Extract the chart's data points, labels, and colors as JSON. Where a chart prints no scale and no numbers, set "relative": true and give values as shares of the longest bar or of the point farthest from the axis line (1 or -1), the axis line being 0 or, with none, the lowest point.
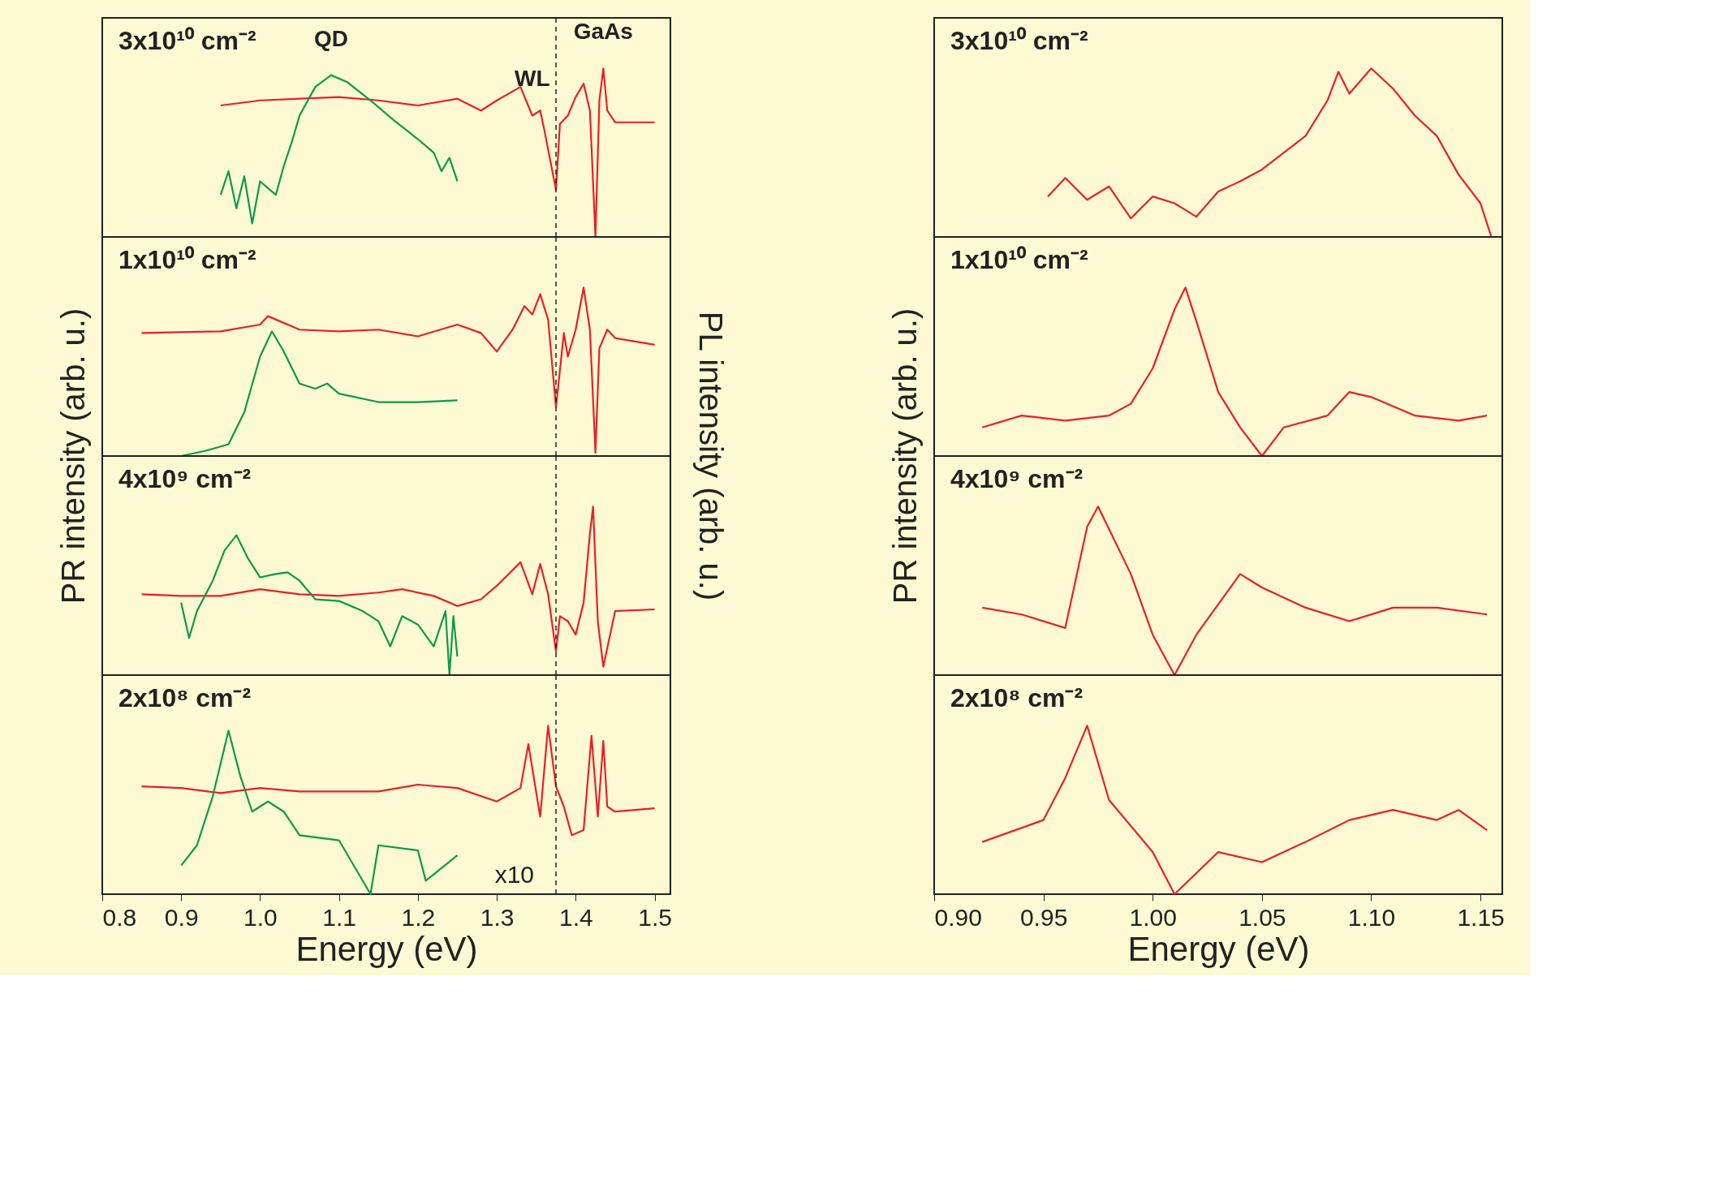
{
  "chart_data": [
    {
      "type": "line",
      "relative": true,
      "xlim": [
        0.8,
        1.52
      ],
      "xticks": [
        0.8,
        0.9,
        1.0,
        1.1,
        1.2,
        1.3,
        1.4,
        1.5
      ],
      "tick_labels": false,
      "annotations": [
        "3x10¹⁰ cm⁻²",
        {
          "text": "QD",
          "x": 1.09,
          "y": 0.96
        },
        {
          "text": "WL",
          "x": 1.345,
          "y": 0.72
        },
        {
          "text": "GaAs",
          "x": 1.435,
          "y": 1
        }
      ],
      "ref_lines": [
        {
          "axis": "x",
          "value": 1.375,
          "line_style": "dashed",
          "color": "#222222"
        }
      ],
      "series": [
        {
          "color": "#e8202a",
          "x": [
            0.95,
            1.0,
            1.05,
            1.1,
            1.15,
            1.2,
            1.25,
            1.28,
            1.3,
            1.33,
            1.345,
            1.355,
            1.36,
            1.375,
            1.38,
            1.39,
            1.4,
            1.41,
            1.418,
            1.425,
            1.43,
            1.435,
            1.44,
            1.45,
            1.5
          ],
          "values": [
            0.78,
            0.81,
            0.82,
            0.83,
            0.81,
            0.78,
            0.82,
            0.75,
            0.81,
            0.89,
            0.72,
            0.75,
            0.64,
            0.28,
            0.67,
            0.72,
            0.83,
            0.91,
            0.75,
            0,
            0.81,
            1,
            0.75,
            0.68,
            0.68
          ]
        },
        {
          "color": "#0a9a48",
          "x": [
            0.95,
            0.96,
            0.97,
            0.98,
            0.99,
            1.0,
            1.02,
            1.03,
            1.04,
            1.05,
            1.07,
            1.09,
            1.11,
            1.14,
            1.17,
            1.2,
            1.22,
            1.23,
            1.24,
            1.25
          ],
          "values": [
            0.25,
            0.39,
            0.17,
            0.36,
            0.08,
            0.33,
            0.25,
            0.42,
            0.56,
            0.72,
            0.89,
            0.96,
            0.92,
            0.81,
            0.69,
            0.58,
            0.5,
            0.39,
            0.47,
            0.33
          ]
        }
      ]
    },
    {
      "type": "line",
      "relative": true,
      "xlim": [
        0.8,
        1.52
      ],
      "xticks": [
        0.8,
        0.9,
        1.0,
        1.1,
        1.2,
        1.3,
        1.4,
        1.5
      ],
      "tick_labels": false,
      "ylabel": "PR intensity (arb. u.)",
      "y2label": "PL intensity (arb. u.)",
      "annotations": [
        "1x10¹⁰ cm⁻²"
      ],
      "ref_lines": [
        {
          "axis": "x",
          "value": 1.375,
          "line_style": "dashed",
          "color": "#222222"
        }
      ],
      "series": [
        {
          "color": "#e8202a",
          "x": [
            0.85,
            0.95,
            1.0,
            1.01,
            1.05,
            1.1,
            1.15,
            1.2,
            1.25,
            1.28,
            1.3,
            1.32,
            1.335,
            1.345,
            1.355,
            1.365,
            1.375,
            1.385,
            1.39,
            1.4,
            1.41,
            1.418,
            1.425,
            1.43,
            1.44,
            1.45,
            1.5
          ],
          "values": [
            0.73,
            0.74,
            0.78,
            0.83,
            0.75,
            0.74,
            0.75,
            0.71,
            0.78,
            0.73,
            0.62,
            0.75,
            0.89,
            0.84,
            0.96,
            0.81,
            0.29,
            0.73,
            0.59,
            0.75,
            1,
            0.75,
            0.02,
            0.64,
            0.75,
            0.7,
            0.66
          ]
        },
        {
          "color": "#0a9a48",
          "x": [
            0.9,
            0.93,
            0.96,
            0.98,
            1.0,
            1.015,
            1.03,
            1.05,
            1.07,
            1.085,
            1.1,
            1.15,
            1.2,
            1.25
          ],
          "values": [
            0,
            0.03,
            0.07,
            0.26,
            0.59,
            0.74,
            0.62,
            0.43,
            0.4,
            0.43,
            0.37,
            0.32,
            0.32,
            0.33
          ]
        }
      ]
    },
    {
      "type": "line",
      "relative": true,
      "xlim": [
        0.8,
        1.52
      ],
      "xticks": [
        0.8,
        0.9,
        1.0,
        1.1,
        1.2,
        1.3,
        1.4,
        1.5
      ],
      "tick_labels": false,
      "annotations": [
        "4x10⁹ cm⁻²"
      ],
      "ref_lines": [
        {
          "axis": "x",
          "value": 1.375,
          "line_style": "dashed",
          "color": "#222222"
        }
      ],
      "series": [
        {
          "color": "#e8202a",
          "x": [
            0.85,
            0.9,
            0.95,
            1.0,
            1.05,
            1.1,
            1.15,
            1.18,
            1.22,
            1.25,
            1.28,
            1.3,
            1.33,
            1.345,
            1.355,
            1.365,
            1.375,
            1.38,
            1.39,
            1.4,
            1.41,
            1.418,
            1.422,
            1.428,
            1.435,
            1.45,
            1.5
          ],
          "values": [
            0.48,
            0.47,
            0.47,
            0.51,
            0.48,
            0.47,
            0.49,
            0.51,
            0.47,
            0.41,
            0.45,
            0.53,
            0.67,
            0.48,
            0.66,
            0.48,
            0.14,
            0.35,
            0.32,
            0.24,
            0.43,
            0.84,
            1,
            0.32,
            0.05,
            0.38,
            0.39
          ]
        },
        {
          "color": "#0a9a48",
          "x": [
            0.9,
            0.91,
            0.92,
            0.94,
            0.955,
            0.97,
            0.985,
            1.0,
            1.02,
            1.035,
            1.05,
            1.07,
            1.1,
            1.13,
            1.15,
            1.165,
            1.18,
            1.2,
            1.22,
            1.235,
            1.24,
            1.245,
            1.25
          ],
          "values": [
            0.43,
            0.22,
            0.38,
            0.56,
            0.74,
            0.83,
            0.69,
            0.58,
            0.6,
            0.61,
            0.56,
            0.45,
            0.44,
            0.38,
            0.32,
            0.17,
            0.35,
            0.3,
            0.17,
            0.38,
            0,
            0.35,
            0.11
          ]
        }
      ]
    },
    {
      "type": "line",
      "relative": true,
      "xlim": [
        0.8,
        1.52
      ],
      "xticks": [
        0.8,
        0.9,
        {
          "value": 1.0,
          "label": "1.0"
        },
        1.1,
        1.2,
        1.3,
        1.4,
        1.5
      ],
      "tick_labels": "x",
      "xlabel": "Energy (eV)",
      "annotations": [
        "2x10⁸ cm⁻²",
        "x10"
      ],
      "ref_lines": [
        {
          "axis": "x",
          "value": 1.375,
          "line_style": "dashed",
          "color": "#222222"
        }
      ],
      "series": [
        {
          "color": "#e8202a",
          "x": [
            0.85,
            0.9,
            0.95,
            1.0,
            1.05,
            1.1,
            1.15,
            1.2,
            1.25,
            1.3,
            1.33,
            1.34,
            1.355,
            1.365,
            1.375,
            1.385,
            1.395,
            1.41,
            1.42,
            1.428,
            1.435,
            1.44,
            1.45,
            1.5
          ],
          "values": [
            0.64,
            0.63,
            0.6,
            0.63,
            0.61,
            0.61,
            0.61,
            0.65,
            0.63,
            0.55,
            0.63,
            0.89,
            0.46,
            1,
            0.64,
            0.52,
            0.35,
            0.38,
            0.94,
            0.46,
            0.91,
            0.52,
            0.49,
            0.51
          ]
        },
        {
          "color": "#0a9a48",
          "x": [
            0.9,
            0.92,
            0.94,
            0.96,
            0.975,
            0.99,
            1.01,
            1.03,
            1.05,
            1.1,
            1.14,
            1.15,
            1.2,
            1.21,
            1.25
          ],
          "values": [
            0.17,
            0.29,
            0.58,
            0.97,
            0.7,
            0.49,
            0.55,
            0.49,
            0.35,
            0.32,
            0,
            0.29,
            0.26,
            0.08,
            0.23
          ]
        }
      ]
    },
    {
      "type": "line",
      "relative": true,
      "xlim": [
        0.9,
        1.16
      ],
      "xticks": [
        0.9,
        0.95,
        1.0,
        1.05,
        1.1,
        1.15
      ],
      "tick_labels": false,
      "annotations": [
        "3x10¹⁰ cm⁻²"
      ],
      "series": [
        {
          "color": "#e8202a",
          "x": [
            0.952,
            0.96,
            0.97,
            0.98,
            0.99,
            1.0,
            1.01,
            1.02,
            1.03,
            1.04,
            1.05,
            1.06,
            1.07,
            1.08,
            1.085,
            1.09,
            1.1,
            1.11,
            1.12,
            1.13,
            1.14,
            1.15,
            1.155
          ],
          "values": [
            0.24,
            0.35,
            0.22,
            0.3,
            0.11,
            0.24,
            0.2,
            0.12,
            0.27,
            0.33,
            0.4,
            0.5,
            0.6,
            0.81,
            0.98,
            0.85,
            1,
            0.88,
            0.72,
            0.6,
            0.37,
            0.2,
            0
          ]
        }
      ]
    },
    {
      "type": "line",
      "relative": true,
      "xlim": [
        0.9,
        1.16
      ],
      "xticks": [
        0.9,
        0.95,
        1.0,
        1.05,
        1.1,
        1.15
      ],
      "tick_labels": false,
      "ylabel": "PR intensity (arb. u.)",
      "annotations": [
        "1x10¹⁰ cm⁻²"
      ],
      "series": [
        {
          "color": "#e8202a",
          "x": [
            0.922,
            0.94,
            0.96,
            0.98,
            0.99,
            1.0,
            1.01,
            1.015,
            1.02,
            1.03,
            1.04,
            1.05,
            1.06,
            1.08,
            1.09,
            1.1,
            1.12,
            1.14,
            1.153
          ],
          "values": [
            0.17,
            0.24,
            0.21,
            0.24,
            0.31,
            0.52,
            0.87,
            1,
            0.8,
            0.38,
            0.17,
            0,
            0.17,
            0.24,
            0.38,
            0.35,
            0.24,
            0.21,
            0.24
          ]
        }
      ]
    },
    {
      "type": "line",
      "relative": true,
      "xlim": [
        0.9,
        1.16
      ],
      "xticks": [
        0.9,
        0.95,
        1.0,
        1.05,
        1.1,
        1.15
      ],
      "tick_labels": false,
      "annotations": [
        "4x10⁹ cm⁻²"
      ],
      "series": [
        {
          "color": "#e8202a",
          "x": [
            0.922,
            0.94,
            0.96,
            0.97,
            0.975,
            0.99,
            1.0,
            1.01,
            1.02,
            1.04,
            1.05,
            1.07,
            1.09,
            1.11,
            1.13,
            1.153
          ],
          "values": [
            0.4,
            0.36,
            0.28,
            0.88,
            1,
            0.6,
            0.24,
            0,
            0.24,
            0.6,
            0.52,
            0.4,
            0.32,
            0.4,
            0.4,
            0.36
          ]
        }
      ]
    },
    {
      "type": "line",
      "relative": true,
      "xlim": [
        0.9,
        1.16
      ],
      "xticks": [
        {
          "value": 0.9,
          "label": "0.90"
        },
        0.95,
        {
          "value": 1.0,
          "label": "1.00"
        },
        1.05,
        {
          "value": 1.1,
          "label": "1.10"
        },
        1.15
      ],
      "tick_labels": "x",
      "xlabel": "Energy (eV)",
      "annotations": [
        "2x10⁸ cm⁻²"
      ],
      "series": [
        {
          "color": "#e8202a",
          "x": [
            0.922,
            0.95,
            0.96,
            0.97,
            0.98,
            1.0,
            1.01,
            1.03,
            1.05,
            1.07,
            1.09,
            1.11,
            1.13,
            1.14,
            1.153
          ],
          "values": [
            0.31,
            0.44,
            0.69,
            1,
            0.56,
            0.25,
            0,
            0.25,
            0.19,
            0.31,
            0.44,
            0.5,
            0.44,
            0.5,
            0.38
          ]
        }
      ]
    }
  ]
}
